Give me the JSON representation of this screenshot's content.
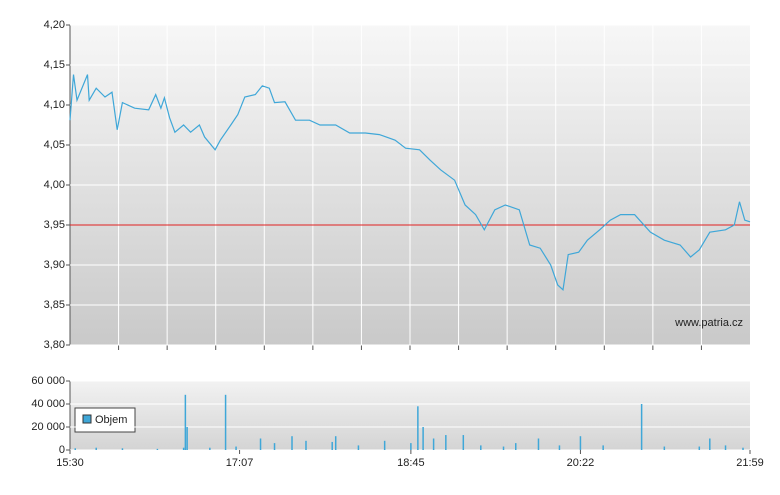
{
  "chart_data": [
    {
      "type": "line",
      "x": [
        "15:30",
        "15:32",
        "15:34",
        "15:40",
        "15:41",
        "15:45",
        "15:50",
        "15:54",
        "15:57",
        "16:00",
        "16:07",
        "16:15",
        "16:19",
        "16:22",
        "16:24",
        "16:27",
        "16:30",
        "16:35",
        "16:39",
        "16:44",
        "16:47",
        "16:53",
        "16:56",
        "17:02",
        "17:06",
        "17:10",
        "17:16",
        "17:20",
        "17:24",
        "17:27",
        "17:33",
        "17:39",
        "17:47",
        "17:53",
        "18:02",
        "18:10",
        "18:19",
        "18:27",
        "18:36",
        "18:42",
        "18:50",
        "18:56",
        "19:02",
        "19:10",
        "19:16",
        "19:22",
        "19:27",
        "19:33",
        "19:39",
        "19:47",
        "19:53",
        "19:59",
        "20:05",
        "20:09",
        "20:12",
        "20:15",
        "20:21",
        "20:26",
        "20:33",
        "20:39",
        "20:45",
        "20:53",
        "21:02",
        "21:10",
        "21:19",
        "21:25",
        "21:30",
        "21:36",
        "21:45",
        "21:50",
        "21:53",
        "21:56",
        "21:59"
      ],
      "values": [
        4.081,
        4.138,
        4.106,
        4.138,
        4.106,
        4.121,
        4.11,
        4.116,
        4.069,
        4.103,
        4.096,
        4.094,
        4.113,
        4.096,
        4.109,
        4.084,
        4.066,
        4.075,
        4.066,
        4.075,
        4.06,
        4.044,
        4.056,
        4.075,
        4.088,
        4.11,
        4.113,
        4.124,
        4.121,
        4.103,
        4.104,
        4.081,
        4.081,
        4.075,
        4.075,
        4.065,
        4.065,
        4.063,
        4.056,
        4.046,
        4.044,
        4.031,
        4.019,
        4.006,
        3.975,
        3.963,
        3.944,
        3.969,
        3.975,
        3.969,
        3.925,
        3.921,
        3.9,
        3.875,
        3.869,
        3.913,
        3.916,
        3.931,
        3.944,
        3.956,
        3.963,
        3.963,
        3.941,
        3.931,
        3.925,
        3.91,
        3.919,
        3.941,
        3.944,
        3.95,
        3.979,
        3.956,
        3.954
      ],
      "color": "#3fa7d8",
      "xlim": [
        "15:30",
        "21:59"
      ],
      "ylim": [
        3.8,
        4.2
      ],
      "yticks": [
        {
          "value": 3.8,
          "label": "3,80"
        },
        {
          "value": 3.85,
          "label": "3,85"
        },
        {
          "value": 3.9,
          "label": "3,90"
        },
        {
          "value": 3.95,
          "label": "3,95"
        },
        {
          "value": 4.0,
          "label": "4,00"
        },
        {
          "value": 4.05,
          "label": "4,05"
        },
        {
          "value": 4.1,
          "label": "4,10"
        },
        {
          "value": 4.15,
          "label": "4,15"
        },
        {
          "value": 4.2,
          "label": "4,20"
        }
      ],
      "reference_line": 3.95,
      "reference_color": "#e02020",
      "annotation": "www.patria.cz",
      "grid": true
    },
    {
      "type": "bar",
      "x": [
        "15:33",
        "15:45",
        "16:00",
        "16:20",
        "16:35",
        "16:36",
        "16:37",
        "16:50",
        "16:59",
        "17:05",
        "17:19",
        "17:27",
        "17:37",
        "17:45",
        "18:00",
        "18:02",
        "18:15",
        "18:30",
        "18:45",
        "18:49",
        "18:52",
        "18:58",
        "19:05",
        "19:15",
        "19:25",
        "19:38",
        "19:45",
        "19:58",
        "20:10",
        "20:22",
        "20:35",
        "20:57",
        "21:10",
        "21:30",
        "21:36",
        "21:45",
        "21:55"
      ],
      "series": [
        {
          "name": "Objem",
          "color": "#3fa7d8",
          "values": [
            1500,
            2000,
            1500,
            1000,
            2000,
            48000,
            20000,
            2000,
            48000,
            3000,
            10000,
            6000,
            12000,
            8000,
            7000,
            12000,
            4000,
            8000,
            6000,
            38000,
            20000,
            10000,
            13000,
            13000,
            4000,
            3000,
            6000,
            10000,
            4000,
            12000,
            4000,
            40000,
            3000,
            3000,
            10000,
            4000,
            2000
          ]
        }
      ],
      "xlim": [
        "15:30",
        "21:59"
      ],
      "xticks": [
        "15:30",
        "17:07",
        "18:45",
        "20:22",
        "21:59"
      ],
      "ylim": [
        0,
        60000
      ],
      "yticks": [
        0,
        {
          "value": 20000,
          "label": "20 000"
        },
        {
          "value": 40000,
          "label": "40 000"
        },
        {
          "value": 60000,
          "label": "60 000"
        }
      ],
      "grid": true
    }
  ]
}
